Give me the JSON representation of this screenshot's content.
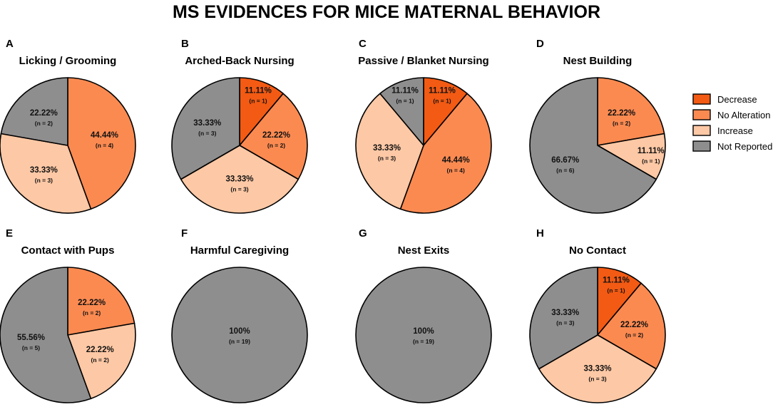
{
  "title": "MS EVIDENCES FOR MICE MATERNAL BEHAVIOR",
  "colors": {
    "Decrease": "#f35a13",
    "No Alteration": "#fb8a51",
    "Increase": "#fdc8a5",
    "Not Reported": "#8e8e8e"
  },
  "legend": [
    "Decrease",
    "No Alteration",
    "Increase",
    "Not Reported"
  ],
  "chart_data": [
    {
      "type": "pie",
      "letter": "A",
      "title": "Licking / Grooming",
      "slices": [
        {
          "category": "No Alteration",
          "percent_label": "44.44%",
          "n_label": "(n = 4)",
          "n": 4
        },
        {
          "category": "Increase",
          "percent_label": "33.33%",
          "n_label": "(n = 3)",
          "n": 3
        },
        {
          "category": "Not Reported",
          "percent_label": "22.22%",
          "n_label": "(n = 2)",
          "n": 2
        }
      ]
    },
    {
      "type": "pie",
      "letter": "B",
      "title": "Arched-Back Nursing",
      "slices": [
        {
          "category": "Decrease",
          "percent_label": "11.11%",
          "n_label": "(n = 1)",
          "n": 1
        },
        {
          "category": "No Alteration",
          "percent_label": "22.22%",
          "n_label": "(n = 2)",
          "n": 2
        },
        {
          "category": "Increase",
          "percent_label": "33.33%",
          "n_label": "(n = 3)",
          "n": 3
        },
        {
          "category": "Not Reported",
          "percent_label": "33.33%",
          "n_label": "(n = 3)",
          "n": 3
        }
      ]
    },
    {
      "type": "pie",
      "letter": "C",
      "title": "Passive / Blanket Nursing",
      "slices": [
        {
          "category": "Decrease",
          "percent_label": "11.11%",
          "n_label": "(n = 1)",
          "n": 1
        },
        {
          "category": "No Alteration",
          "percent_label": "44.44%",
          "n_label": "(n = 4)",
          "n": 4
        },
        {
          "category": "Increase",
          "percent_label": "33.33%",
          "n_label": "(n = 3)",
          "n": 3
        },
        {
          "category": "Not Reported",
          "percent_label": "11.11%",
          "n_label": "(n = 1)",
          "n": 1
        }
      ]
    },
    {
      "type": "pie",
      "letter": "D",
      "title": "Nest Building",
      "slices": [
        {
          "category": "No Alteration",
          "percent_label": "22.22%",
          "n_label": "(n = 2)",
          "n": 2
        },
        {
          "category": "Increase",
          "percent_label": "11.11%",
          "n_label": "(n = 1)",
          "n": 1
        },
        {
          "category": "Not Reported",
          "percent_label": "66.67%",
          "n_label": "(n = 6)",
          "n": 6
        }
      ]
    },
    {
      "type": "pie",
      "letter": "E",
      "title": "Contact with Pups",
      "slices": [
        {
          "category": "No Alteration",
          "percent_label": "22.22%",
          "n_label": "(n = 2)",
          "n": 2
        },
        {
          "category": "Increase",
          "percent_label": "22.22%",
          "n_label": "(n = 2)",
          "n": 2
        },
        {
          "category": "Not Reported",
          "percent_label": "55.56%",
          "n_label": "(n = 5)",
          "n": 5
        }
      ]
    },
    {
      "type": "pie",
      "letter": "F",
      "title": "Harmful Caregiving",
      "slices": [
        {
          "category": "Not Reported",
          "percent_label": "100%",
          "n_label": "(n = 19)",
          "n": 19
        }
      ]
    },
    {
      "type": "pie",
      "letter": "G",
      "title": "Nest Exits",
      "slices": [
        {
          "category": "Not Reported",
          "percent_label": "100%",
          "n_label": "(n = 19)",
          "n": 19
        }
      ]
    },
    {
      "type": "pie",
      "letter": "H",
      "title": "No Contact",
      "slices": [
        {
          "category": "Decrease",
          "percent_label": "11.11%",
          "n_label": "(n = 1)",
          "n": 1
        },
        {
          "category": "No Alteration",
          "percent_label": "22.22%",
          "n_label": "(n = 2)",
          "n": 2
        },
        {
          "category": "Increase",
          "percent_label": "33.33%",
          "n_label": "(n = 3)",
          "n": 3
        },
        {
          "category": "Not Reported",
          "percent_label": "33.33%",
          "n_label": "(n = 3)",
          "n": 3
        }
      ]
    }
  ]
}
